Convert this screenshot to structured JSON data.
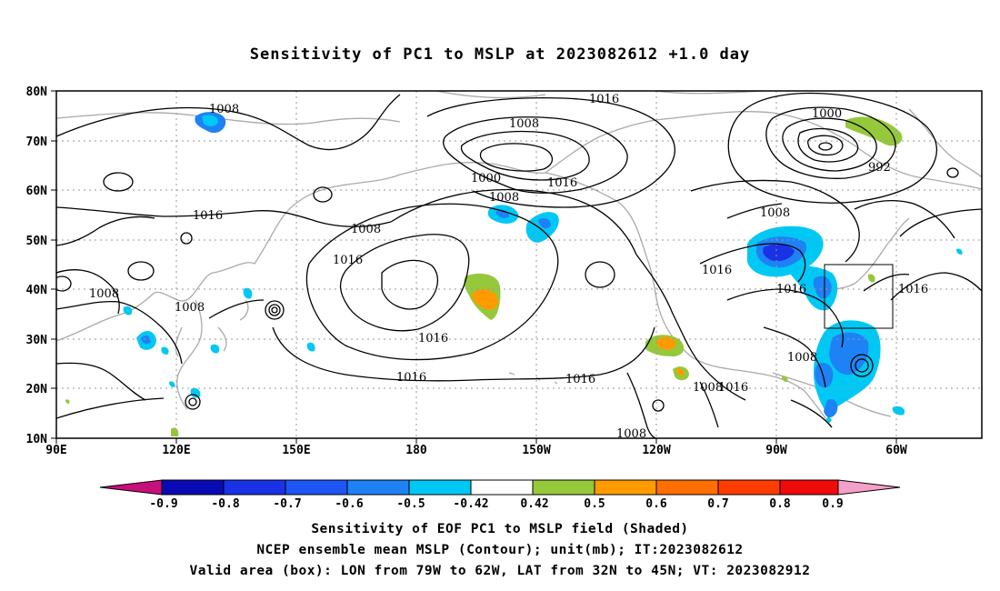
{
  "title": "Sensitivity of PC1 to MSLP at 2023082612 +1.0 day",
  "lat_labels": [
    "80N",
    "70N",
    "60N",
    "50N",
    "40N",
    "30N",
    "20N",
    "10N"
  ],
  "lon_labels": [
    "90E",
    "120E",
    "150E",
    "180",
    "150W",
    "120W",
    "90W",
    "60W"
  ],
  "contour_labels": [
    "1008",
    "1016",
    "1016",
    "1008",
    "1008",
    "1000",
    "1008",
    "1016",
    "1008",
    "1016",
    "1016",
    "1016",
    "1016",
    "1008",
    "1016",
    "1000",
    "992",
    "1008",
    "1016",
    "1016",
    "1016",
    "1008",
    "1008",
    "1008",
    "1016",
    "1016",
    "1016",
    "1008"
  ],
  "colorbar": {
    "ticks": [
      "-0.9",
      "-0.8",
      "-0.7",
      "-0.6",
      "-0.5",
      "-0.42",
      "0.42",
      "0.5",
      "0.6",
      "0.7",
      "0.8",
      "0.9"
    ],
    "colors": [
      "#c8107a",
      "#0a0ab4",
      "#1932e6",
      "#1e55f5",
      "#1e82f5",
      "#00c8f5",
      "#ffffff",
      "#96c83c",
      "#ff9b00",
      "#ff6e00",
      "#ff3c00",
      "#f00a0a",
      "#f5a0c8"
    ]
  },
  "valid_box": {
    "lon_min": -79,
    "lon_max": -62,
    "lat_min": 32,
    "lat_max": 45
  },
  "caption": {
    "line1": "Sensitivity of EOF PC1 to MSLP field (Shaded)",
    "line2": "NCEP ensemble mean MSLP (Contour); unit(mb); IT:2023082612",
    "line3": "Valid area (box): LON from 79W to 62W, LAT from 32N to 45N; VT: 2023082912"
  }
}
